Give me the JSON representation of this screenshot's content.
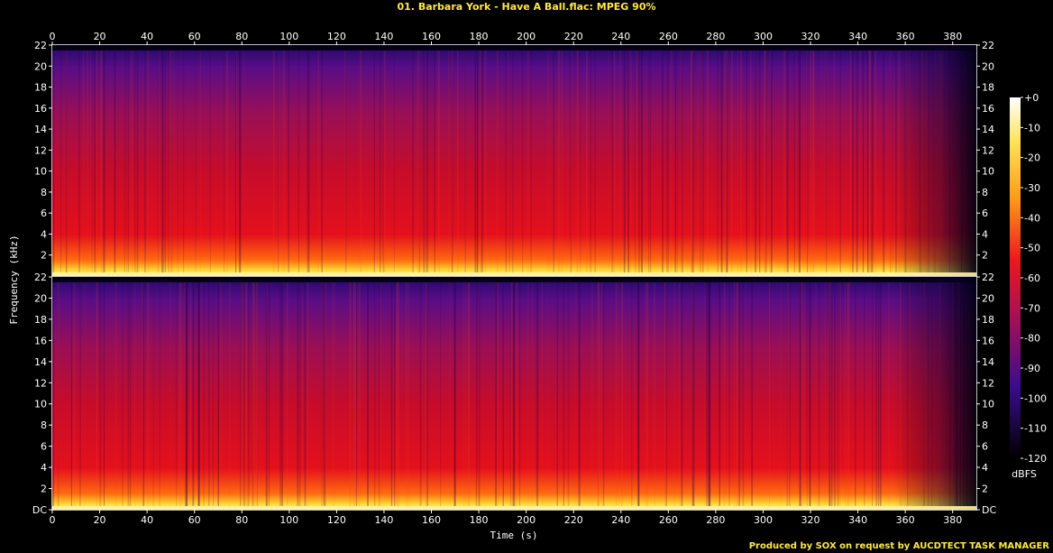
{
  "title": "01. Barbara York - Have A Ball.flac: MPEG 90%",
  "footer": "Produced by SOX on request by AUCDTECT TASK MANAGER",
  "chart_data": {
    "type": "heatmap",
    "title": "01. Barbara York - Have A Ball.flac: MPEG 90%",
    "xlabel": "Time (s)",
    "ylabel": "Frequency (kHz)",
    "xlim": [
      0,
      390
    ],
    "ylim_khz": [
      0,
      22
    ],
    "x_ticks": [
      0,
      20,
      40,
      60,
      80,
      100,
      120,
      140,
      160,
      180,
      200,
      220,
      240,
      260,
      280,
      300,
      320,
      340,
      360,
      380
    ],
    "y_ticks": [
      "DC",
      "2",
      "4",
      "6",
      "8",
      "10",
      "12",
      "14",
      "16",
      "18",
      "20",
      "22"
    ],
    "channels": 2,
    "colorbar": {
      "label": "dBFS",
      "range": [
        -120,
        0
      ],
      "ticks": [
        "+0",
        "-10",
        "-20",
        "-30",
        "-40",
        "-50",
        "-60",
        "-70",
        "-80",
        "-90",
        "-100",
        "-110",
        "-120"
      ]
    },
    "colors": {
      "low": "#000000",
      "mid_low": "#3a0a8a",
      "mid": "#d80a1e",
      "high": "#ffcf2a",
      "max": "#ffffff",
      "label_yellow": "#ffe84a"
    }
  }
}
